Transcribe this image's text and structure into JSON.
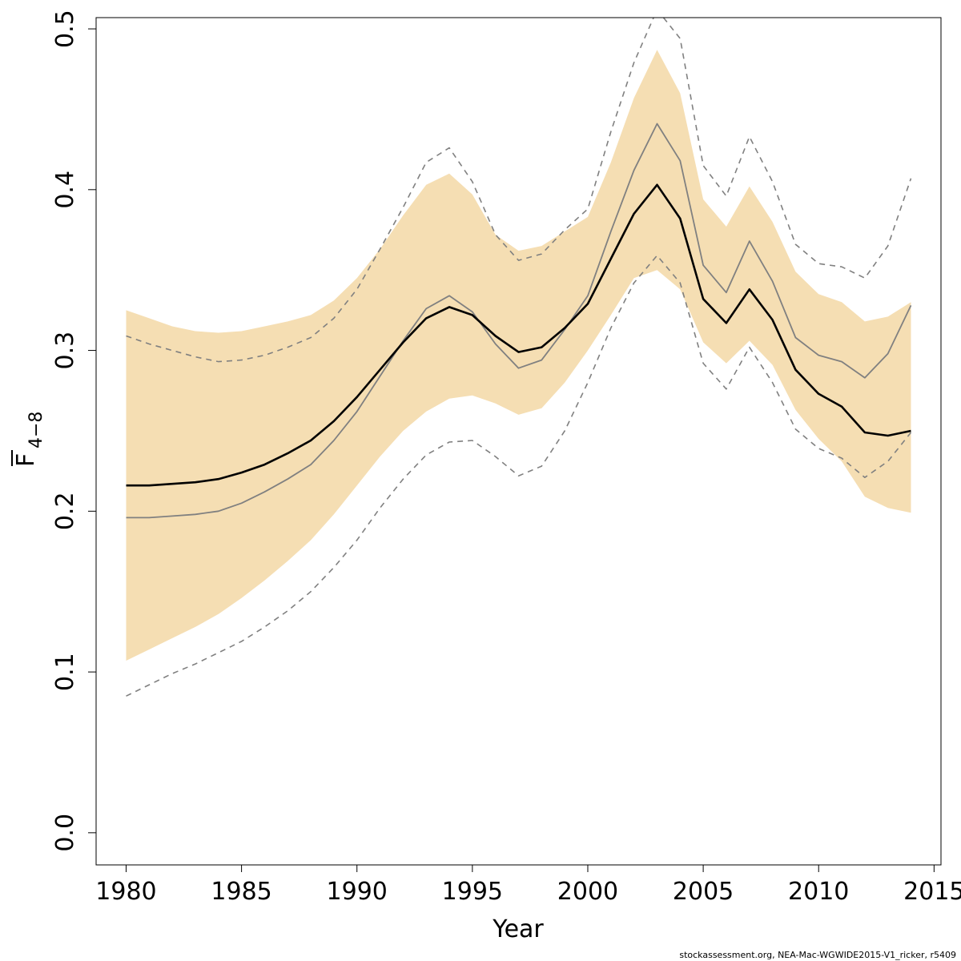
{
  "chart_data": {
    "type": "line",
    "xlabel": "Year",
    "ylabel_main": "F",
    "ylabel_sub": "4−8",
    "xlim": [
      1978.7,
      2015.3
    ],
    "ylim": [
      -0.02,
      0.507
    ],
    "x_ticks": [
      1980,
      1985,
      1990,
      1995,
      2000,
      2005,
      2010,
      2015
    ],
    "x_tick_labels": [
      "1980",
      "1985",
      "1990",
      "1995",
      "2000",
      "2005",
      "2010",
      "2015"
    ],
    "y_ticks": [
      0.0,
      0.1,
      0.2,
      0.3,
      0.4,
      0.5
    ],
    "y_tick_labels": [
      "0.0",
      "0.1",
      "0.2",
      "0.3",
      "0.4",
      "0.5"
    ],
    "grid": false,
    "x": [
      1980,
      1981,
      1982,
      1983,
      1984,
      1985,
      1986,
      1987,
      1988,
      1989,
      1990,
      1991,
      1992,
      1993,
      1994,
      1995,
      1996,
      1997,
      1998,
      1999,
      2000,
      2001,
      2002,
      2003,
      2004,
      2005,
      2006,
      2007,
      2008,
      2009,
      2010,
      2011,
      2012,
      2013,
      2014
    ],
    "series": [
      {
        "role": "band_upper",
        "color": "#f5deb3",
        "values": [
          0.325,
          0.32,
          0.315,
          0.312,
          0.311,
          0.312,
          0.315,
          0.318,
          0.322,
          0.331,
          0.345,
          0.363,
          0.384,
          0.403,
          0.41,
          0.397,
          0.372,
          0.362,
          0.365,
          0.374,
          0.383,
          0.417,
          0.457,
          0.487,
          0.46,
          0.394,
          0.377,
          0.402,
          0.38,
          0.349,
          0.335,
          0.33,
          0.318,
          0.321,
          0.33
        ]
      },
      {
        "role": "band_lower",
        "color": "#f5deb3",
        "values": [
          0.107,
          0.114,
          0.121,
          0.128,
          0.136,
          0.146,
          0.157,
          0.169,
          0.182,
          0.198,
          0.216,
          0.234,
          0.25,
          0.262,
          0.27,
          0.272,
          0.267,
          0.26,
          0.264,
          0.28,
          0.3,
          0.322,
          0.345,
          0.35,
          0.338,
          0.305,
          0.292,
          0.306,
          0.291,
          0.263,
          0.245,
          0.231,
          0.209,
          0.202,
          0.199
        ]
      },
      {
        "role": "main",
        "color": "#000000",
        "values": [
          0.216,
          0.216,
          0.217,
          0.218,
          0.22,
          0.224,
          0.229,
          0.236,
          0.244,
          0.256,
          0.271,
          0.288,
          0.305,
          0.32,
          0.327,
          0.322,
          0.309,
          0.299,
          0.302,
          0.314,
          0.329,
          0.357,
          0.385,
          0.403,
          0.382,
          0.332,
          0.317,
          0.338,
          0.319,
          0.288,
          0.273,
          0.265,
          0.249,
          0.247,
          0.25
        ]
      },
      {
        "role": "secondary",
        "color": "#808080",
        "values": [
          0.196,
          0.196,
          0.197,
          0.198,
          0.2,
          0.205,
          0.212,
          0.22,
          0.229,
          0.244,
          0.262,
          0.284,
          0.306,
          0.326,
          0.334,
          0.324,
          0.304,
          0.289,
          0.294,
          0.313,
          0.334,
          0.374,
          0.412,
          0.441,
          0.418,
          0.353,
          0.336,
          0.368,
          0.343,
          0.308,
          0.297,
          0.293,
          0.283,
          0.298,
          0.328
        ]
      },
      {
        "role": "dashed_upper",
        "color": "#808080",
        "values": [
          0.309,
          0.304,
          0.3,
          0.296,
          0.293,
          0.294,
          0.297,
          0.302,
          0.308,
          0.32,
          0.338,
          0.363,
          0.389,
          0.417,
          0.426,
          0.405,
          0.372,
          0.356,
          0.36,
          0.375,
          0.388,
          0.436,
          0.479,
          0.512,
          0.494,
          0.415,
          0.396,
          0.433,
          0.405,
          0.366,
          0.354,
          0.352,
          0.345,
          0.365,
          0.407
        ]
      },
      {
        "role": "dashed_lower",
        "color": "#808080",
        "values": [
          0.085,
          0.092,
          0.099,
          0.105,
          0.112,
          0.119,
          0.128,
          0.138,
          0.15,
          0.165,
          0.182,
          0.202,
          0.22,
          0.235,
          0.243,
          0.244,
          0.234,
          0.222,
          0.228,
          0.25,
          0.28,
          0.314,
          0.342,
          0.359,
          0.342,
          0.292,
          0.276,
          0.302,
          0.28,
          0.251,
          0.239,
          0.233,
          0.221,
          0.231,
          0.249
        ]
      }
    ]
  },
  "footer": {
    "note": "stockassessment.org, NEA-Mac-WGWIDE2015-V1_ricker, r5409"
  }
}
